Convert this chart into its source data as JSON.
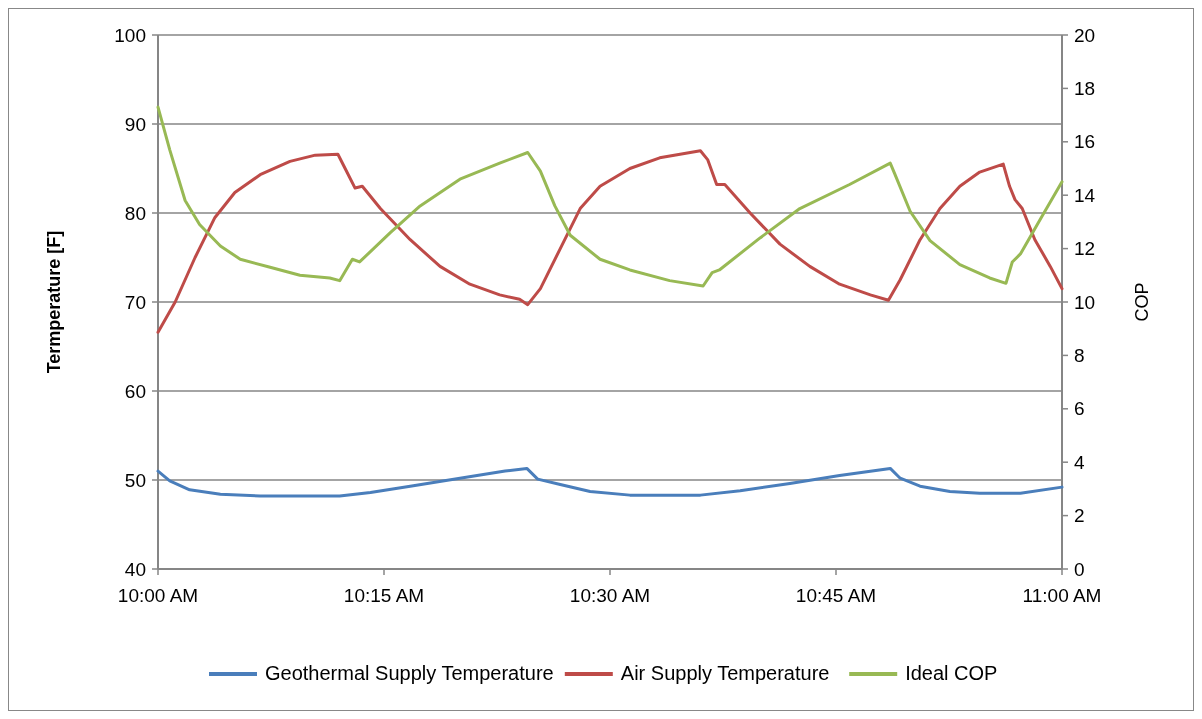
{
  "chart_data": {
    "type": "line",
    "ylabel": "Termperature [F]",
    "y2label": "COP",
    "xlim": [
      10,
      11
    ],
    "xticks": [
      {
        "value": 10,
        "label": "10:00 AM"
      },
      {
        "value": 10.25,
        "label": "10:15 AM"
      },
      {
        "value": 10.5,
        "label": "10:30 AM"
      },
      {
        "value": 10.75,
        "label": "10:45 AM"
      },
      {
        "value": 11,
        "label": "11:00 AM"
      }
    ],
    "ylim": [
      40,
      100
    ],
    "yticks": [
      40,
      50,
      60,
      70,
      80,
      90,
      100
    ],
    "y2lim": [
      0,
      20
    ],
    "y2ticks": [
      0,
      2,
      4,
      6,
      8,
      10,
      12,
      14,
      16,
      18,
      20
    ],
    "grid": "y",
    "legend": "bottom",
    "marker": "none",
    "line_style": "solid",
    "series": [
      {
        "name": "Geothermal Supply Temperature",
        "color": "#4a7ebb",
        "x": [
          10.0,
          10.013,
          10.035,
          10.069,
          10.113,
          10.201,
          10.235,
          10.279,
          10.334,
          10.384,
          10.408,
          10.42,
          10.445,
          10.478,
          10.522,
          10.6,
          10.644,
          10.699,
          10.754,
          10.81,
          10.821,
          10.843,
          10.876,
          10.909,
          10.954,
          11.0
        ],
        "values": [
          51,
          49.9,
          48.9,
          48.4,
          48.2,
          48.2,
          48.6,
          49.3,
          50.2,
          51,
          51.3,
          50.1,
          49.5,
          48.7,
          48.3,
          48.3,
          48.8,
          49.6,
          50.5,
          51.3,
          50.2,
          49.3,
          48.7,
          48.5,
          48.5,
          49.2
        ]
      },
      {
        "name": "Air Supply Temperature",
        "color": "#be4b48",
        "x": [
          10.0,
          10.019,
          10.041,
          10.063,
          10.085,
          10.113,
          10.146,
          10.174,
          10.199,
          10.207,
          10.218,
          10.226,
          10.246,
          10.279,
          10.312,
          10.345,
          10.378,
          10.4,
          10.409,
          10.423,
          10.445,
          10.467,
          10.489,
          10.522,
          10.555,
          10.6,
          10.608,
          10.618,
          10.627,
          10.655,
          10.688,
          10.721,
          10.754,
          10.788,
          10.808,
          10.821,
          10.843,
          10.865,
          10.887,
          10.909,
          10.935,
          10.942,
          10.948,
          10.956,
          10.97,
          10.987,
          11.0
        ],
        "values": [
          66.6,
          70,
          75,
          79.5,
          82.3,
          84.3,
          85.8,
          86.5,
          86.6,
          85,
          82.8,
          83,
          80.5,
          77,
          74,
          72,
          70.8,
          70.3,
          69.7,
          71.5,
          76,
          80.5,
          83,
          85,
          86.2,
          87,
          86,
          83.2,
          83.2,
          80,
          76.5,
          74,
          72,
          70.8,
          70.2,
          72.5,
          77,
          80.5,
          83,
          84.6,
          85.5,
          83,
          81.5,
          80.5,
          77,
          74,
          71.5
        ]
      },
      {
        "name": "Ideal COP",
        "color": "#98b954",
        "axis": "y2",
        "x": [
          10.0,
          10.013,
          10.03,
          10.046,
          10.069,
          10.091,
          10.124,
          10.157,
          10.19,
          10.201,
          10.215,
          10.223,
          10.257,
          10.29,
          10.334,
          10.378,
          10.409,
          10.423,
          10.439,
          10.456,
          10.489,
          10.522,
          10.566,
          10.603,
          10.613,
          10.621,
          10.666,
          10.71,
          10.765,
          10.81,
          10.815,
          10.832,
          10.854,
          10.887,
          10.92,
          10.938,
          10.945,
          10.954,
          10.976,
          11.0
        ],
        "values": [
          17.3,
          15.7,
          13.8,
          12.9,
          12.1,
          11.6,
          11.3,
          11.0,
          10.9,
          10.8,
          11.6,
          11.5,
          12.6,
          13.6,
          14.6,
          15.2,
          15.6,
          14.9,
          13.6,
          12.5,
          11.6,
          11.2,
          10.8,
          10.6,
          11.1,
          11.2,
          12.4,
          13.5,
          14.4,
          15.2,
          14.8,
          13.4,
          12.3,
          11.4,
          10.9,
          10.7,
          11.5,
          11.8,
          13.1,
          14.5
        ]
      }
    ]
  }
}
